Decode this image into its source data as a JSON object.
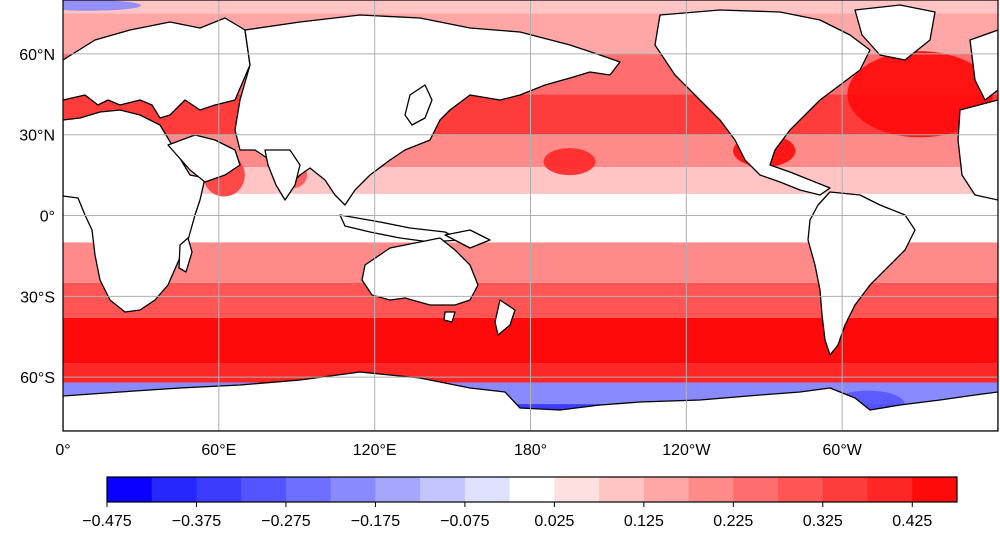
{
  "map": {
    "projection": "equirectangular",
    "central_longitude": 180,
    "lat_range": [
      -80,
      80
    ],
    "lon_range": [
      0,
      360
    ],
    "grid": true,
    "lat_ticks": [
      {
        "value": 60,
        "label": "60°N"
      },
      {
        "value": 30,
        "label": "30°N"
      },
      {
        "value": 0,
        "label": "0°"
      },
      {
        "value": -30,
        "label": "30°S"
      },
      {
        "value": -60,
        "label": "60°S"
      }
    ],
    "lon_ticks": [
      {
        "value": 0,
        "label": "0°"
      },
      {
        "value": 60,
        "label": "60°E"
      },
      {
        "value": 120,
        "label": "120°E"
      },
      {
        "value": 180,
        "label": "180°"
      },
      {
        "value": 240,
        "label": "120°W"
      },
      {
        "value": 300,
        "label": "60°W"
      }
    ],
    "field_bands": [
      {
        "lat": [
          75,
          80
        ],
        "value": 0.1
      },
      {
        "lat": [
          60,
          75
        ],
        "value": 0.15
      },
      {
        "lat": [
          45,
          60
        ],
        "value": 0.25
      },
      {
        "lat": [
          30,
          45
        ],
        "value": 0.33
      },
      {
        "lat": [
          18,
          30
        ],
        "value": 0.2
      },
      {
        "lat": [
          8,
          18
        ],
        "value": 0.1
      },
      {
        "lat": [
          -10,
          8
        ],
        "value": 0.02
      },
      {
        "lat": [
          -25,
          -10
        ],
        "value": 0.18
      },
      {
        "lat": [
          -38,
          -25
        ],
        "value": 0.3
      },
      {
        "lat": [
          -55,
          -38
        ],
        "value": 0.45
      },
      {
        "lat": [
          -62,
          -55
        ],
        "value": 0.4
      },
      {
        "lat": [
          -70,
          -62
        ],
        "value": -0.2
      },
      {
        "lat": [
          -80,
          -70
        ],
        "value": -0.35
      }
    ],
    "hotspots": [
      {
        "name": "north-atlantic",
        "lon": 330,
        "lat": 45,
        "rx": 28,
        "ry": 16,
        "value": 0.45
      },
      {
        "name": "gulf-of-mexico",
        "lon": 270,
        "lat": 24,
        "rx": 12,
        "ry": 6,
        "value": 0.45
      },
      {
        "name": "subtropical-north-pacific",
        "lon": 195,
        "lat": 20,
        "rx": 10,
        "ry": 5,
        "value": 0.4
      },
      {
        "name": "arabian-sea",
        "lon": 62,
        "lat": 15,
        "rx": 8,
        "ry": 8,
        "value": 0.35
      },
      {
        "name": "bay-of-bengal",
        "lon": 88,
        "lat": 15,
        "rx": 6,
        "ry": 5,
        "value": 0.3
      }
    ],
    "coldspots": [
      {
        "name": "ross-sea",
        "lon": 185,
        "lat": -76,
        "rx": 12,
        "ry": 3,
        "value": -0.45
      },
      {
        "name": "weddell-sea",
        "lon": 310,
        "lat": -70,
        "rx": 14,
        "ry": 5,
        "value": -0.3
      },
      {
        "name": "arctic-strip",
        "lon": 10,
        "lat": 78,
        "rx": 20,
        "ry": 2,
        "value": -0.2
      }
    ]
  },
  "colorbar": {
    "min": -0.475,
    "max": 0.475,
    "step": 0.05,
    "colors": [
      "#0a00ff",
      "#2626ff",
      "#3c3cff",
      "#5555ff",
      "#6e6eff",
      "#8a8aff",
      "#a6a6ff",
      "#c4c4ff",
      "#e0e0ff",
      "#ffffff",
      "#ffe0e0",
      "#ffc4c4",
      "#ffa6a6",
      "#ff8a8a",
      "#ff6e6e",
      "#ff5555",
      "#ff3c3c",
      "#ff2626",
      "#ff0a0a"
    ],
    "tick_labels": [
      {
        "value": -0.475,
        "label": "−0.475"
      },
      {
        "value": -0.375,
        "label": "−0.375"
      },
      {
        "value": -0.275,
        "label": "−0.275"
      },
      {
        "value": -0.175,
        "label": "−0.175"
      },
      {
        "value": -0.075,
        "label": "−0.075"
      },
      {
        "value": 0.025,
        "label": "0.025"
      },
      {
        "value": 0.125,
        "label": "0.125"
      },
      {
        "value": 0.225,
        "label": "0.225"
      },
      {
        "value": 0.325,
        "label": "0.325"
      },
      {
        "value": 0.425,
        "label": "0.425"
      }
    ]
  }
}
